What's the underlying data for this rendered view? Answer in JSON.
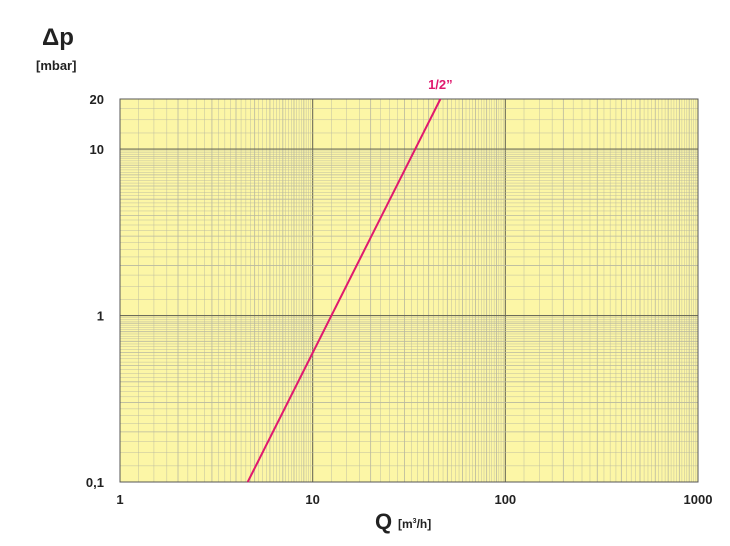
{
  "chart_data": {
    "type": "line",
    "ylabel": "Δp",
    "yunit": "[mbar]",
    "xlabel": "Q",
    "xunit_prefix": "[m",
    "xunit_sup": "3",
    "xunit_suffix": "/h]",
    "xscale": "log",
    "yscale": "log",
    "xlim": [
      1,
      1000
    ],
    "ylim": [
      0.1,
      20
    ],
    "grid": true,
    "background_color": "#fcf6a6",
    "grid_color": "#b8b8a0",
    "xticks": [
      {
        "value": 1,
        "label": "1"
      },
      {
        "value": 10,
        "label": "10"
      },
      {
        "value": 100,
        "label": "100"
      },
      {
        "value": 1000,
        "label": "1000"
      }
    ],
    "yticks": [
      {
        "value": 0.1,
        "label": "0,1"
      },
      {
        "value": 1,
        "label": "1"
      },
      {
        "value": 10,
        "label": "10"
      },
      {
        "value": 20,
        "label": "20"
      }
    ],
    "series": [
      {
        "name": "1/2”",
        "color": "#e0196e",
        "x": [
          4.6,
          46
        ],
        "y": [
          0.1,
          20
        ]
      }
    ]
  }
}
